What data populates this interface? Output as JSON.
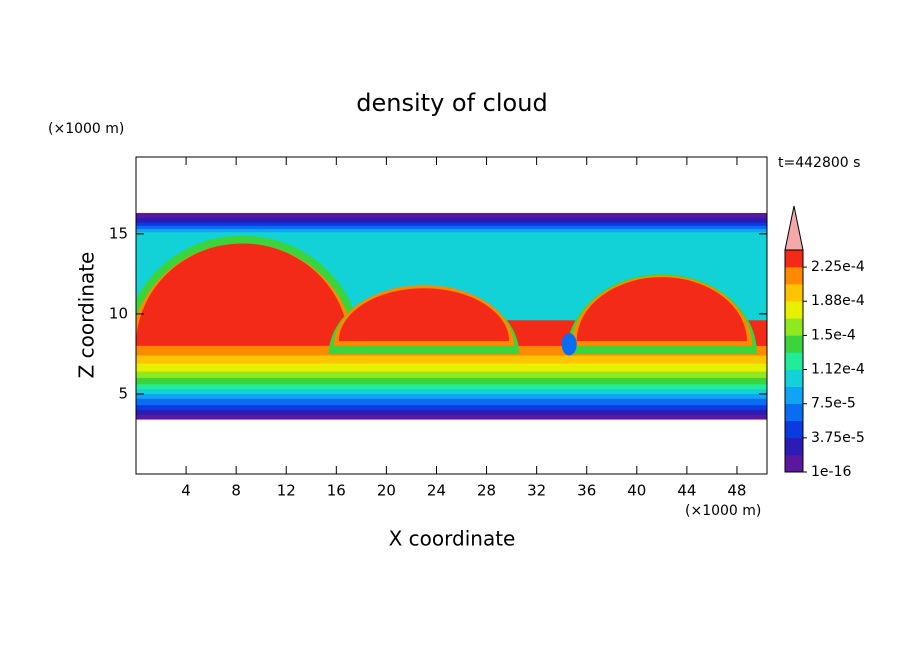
{
  "chart_data": {
    "type": "contour",
    "title": "density of cloud",
    "x_label": "X coordinate",
    "y_label": "Z coordinate",
    "x_unit": "(×1000 m)",
    "y_unit": "(×1000 m)",
    "annotation": "t=442800 s",
    "xlim": [
      0,
      50.4
    ],
    "ylim": [
      0,
      19.8
    ],
    "xticks": [
      4,
      8,
      12,
      16,
      20,
      24,
      28,
      32,
      36,
      40,
      44,
      48
    ],
    "yticks": [
      5,
      10,
      15
    ],
    "colorbar": {
      "lim": [
        1e-16,
        0.00024375
      ],
      "ticks": [
        {
          "value": 1e-16,
          "label": "1e-16"
        },
        {
          "value": 3.75e-05,
          "label": "3.75e-5"
        },
        {
          "value": 7.5e-05,
          "label": "7.5e-5"
        },
        {
          "value": 0.0001125,
          "label": "1.12e-4"
        },
        {
          "value": 0.00015,
          "label": "1.5e-4"
        },
        {
          "value": 0.0001875,
          "label": "1.88e-4"
        },
        {
          "value": 0.000225,
          "label": "2.25e-4"
        }
      ],
      "colors": [
        "#5a18a0",
        "#2a1cb4",
        "#0a3ae0",
        "#0a6cf2",
        "#10a4f4",
        "#12d2d8",
        "#22ec9a",
        "#3cd43c",
        "#90e81e",
        "#e8f000",
        "#ffc400",
        "#ff8a00",
        "#f42a18"
      ],
      "over_color": "#f4a8a8"
    }
  }
}
